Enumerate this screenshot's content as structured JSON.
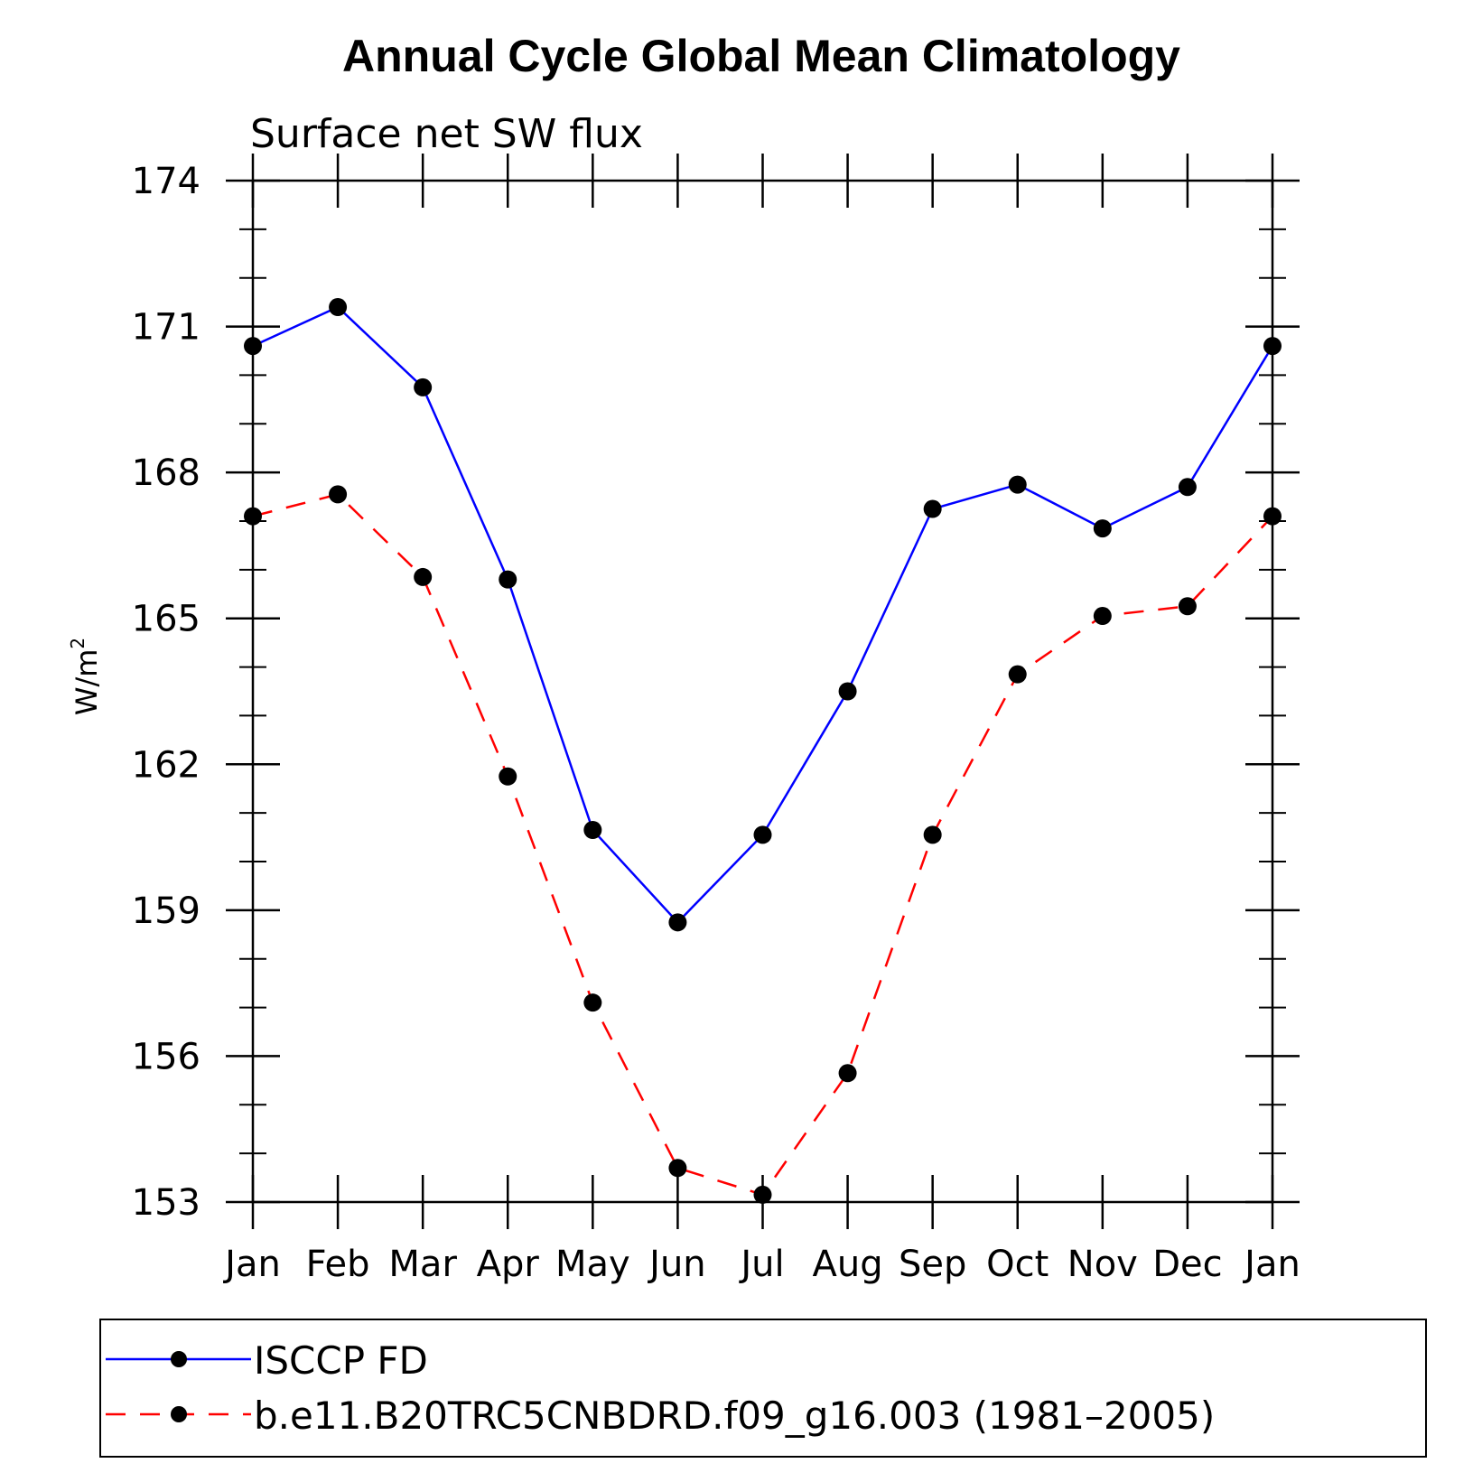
{
  "chart_data": {
    "type": "line",
    "title": "Annual Cycle Global Mean Climatology",
    "subtitle": "Surface net SW flux",
    "ylabel": "W/m",
    "ylabel_sup": "2",
    "xlabel": "",
    "categories": [
      "Jan",
      "Feb",
      "Mar",
      "Apr",
      "May",
      "Jun",
      "Jul",
      "Aug",
      "Sep",
      "Oct",
      "Nov",
      "Dec",
      "Jan"
    ],
    "ylim": [
      153,
      174
    ],
    "yticks": [
      153,
      156,
      159,
      162,
      165,
      168,
      171,
      174
    ],
    "grid": false,
    "legend_position": "bottom",
    "series": [
      {
        "name": "ISCCP FD",
        "color": "#0000ff",
        "line_style": "solid",
        "marker": "filled-circle",
        "values": [
          170.6,
          171.4,
          169.75,
          165.8,
          160.65,
          158.75,
          160.55,
          163.5,
          167.25,
          167.75,
          166.85,
          167.7,
          170.6
        ]
      },
      {
        "name": "b.e11.B20TRC5CNBDRD.f09_g16.003 (1981–2005)",
        "color": "#ff0000",
        "line_style": "dashed",
        "marker": "filled-circle",
        "values": [
          167.1,
          167.55,
          165.85,
          161.75,
          157.1,
          153.7,
          153.15,
          155.65,
          160.55,
          163.85,
          165.05,
          165.25,
          167.1
        ]
      }
    ]
  }
}
